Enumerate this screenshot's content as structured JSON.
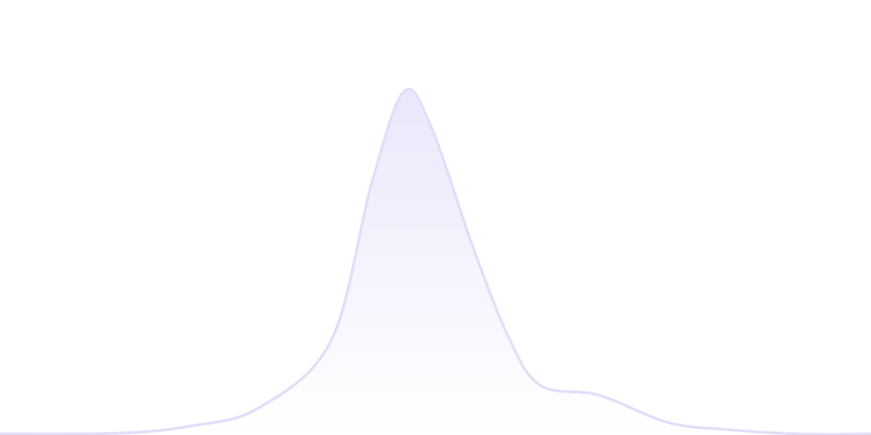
{
  "chart_data": {
    "type": "area",
    "title": "",
    "xlabel": "",
    "ylabel": "",
    "xlim": [
      0,
      100
    ],
    "ylim": [
      0,
      100
    ],
    "grid": false,
    "axes_visible": false,
    "legend": "none",
    "curve": "smooth",
    "x": [
      0,
      13.5,
      21.9,
      29.7,
      38,
      42.7,
      46.4,
      49.5,
      54.2,
      58.3,
      62,
      68.8,
      76.6,
      83.3,
      91.7,
      100
    ],
    "series": [
      {
        "values": [
          0.3,
          0.5,
          2.6,
          7.9,
          27.4,
          73.6,
          100,
          89.7,
          55.4,
          29,
          14.5,
          11.6,
          3.7,
          1.6,
          0.3,
          0.3
        ],
        "stroke_color": "#e2ddf8",
        "fill_color_top": "#ebe7fb",
        "fill_color_bottom": "#ffffff"
      }
    ]
  }
}
